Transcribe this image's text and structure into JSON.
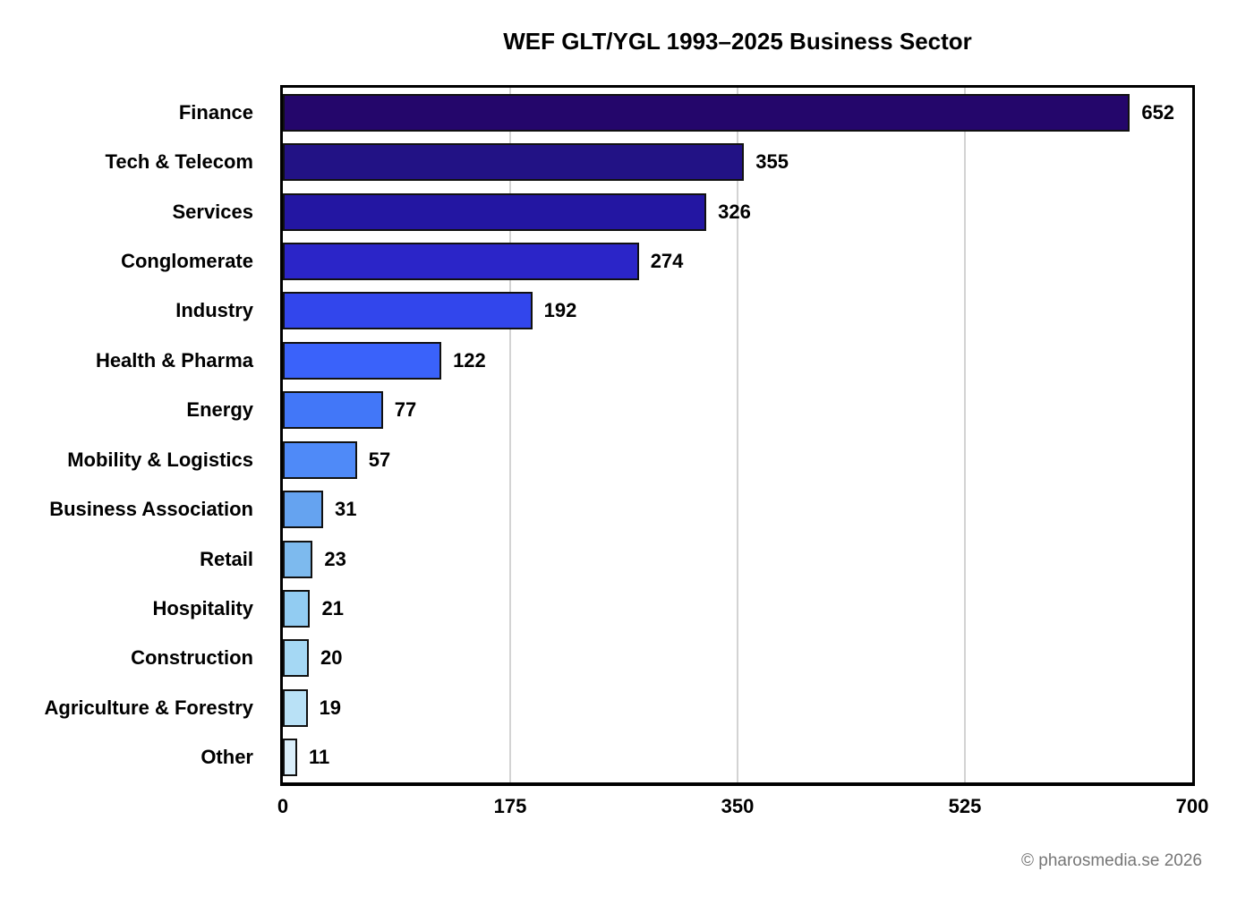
{
  "title": "WEF GLT/YGL 1993–2025 Business Sector",
  "footer": "© pharosmedia.se 2026",
  "chart_data": {
    "type": "bar",
    "orientation": "horizontal",
    "title": "WEF GLT/YGL 1993–2025 Business Sector",
    "categories": [
      "Finance",
      "Tech & Telecom",
      "Services",
      "Conglomerate",
      "Industry",
      "Health & Pharma",
      "Energy",
      "Mobility & Logistics",
      "Business Association",
      "Retail",
      "Hospitality",
      "Construction",
      "Agriculture & Forestry",
      "Other"
    ],
    "values": [
      652,
      355,
      326,
      274,
      192,
      122,
      77,
      57,
      31,
      23,
      21,
      20,
      19,
      11
    ],
    "bar_colors": [
      "#24066B",
      "#221285",
      "#2316A2",
      "#2B25C8",
      "#3246EC",
      "#3A62FA",
      "#4277F8",
      "#4F8AF8",
      "#65A3F0",
      "#7DBAEE",
      "#92CCF2",
      "#A5D8F4",
      "#B9E1F6",
      "#DAEEFA"
    ],
    "bar_edge_color": "#111111",
    "value_labels_shown": true,
    "xlabel": "",
    "ylabel": "",
    "xlim": [
      0,
      700
    ],
    "xticks": [
      0,
      175,
      350,
      525,
      700
    ],
    "grid": "vertical gridlines at interior x ticks",
    "gridline_color": "#d3d3d3",
    "axis_border_color": "#000000",
    "legend": "none"
  }
}
